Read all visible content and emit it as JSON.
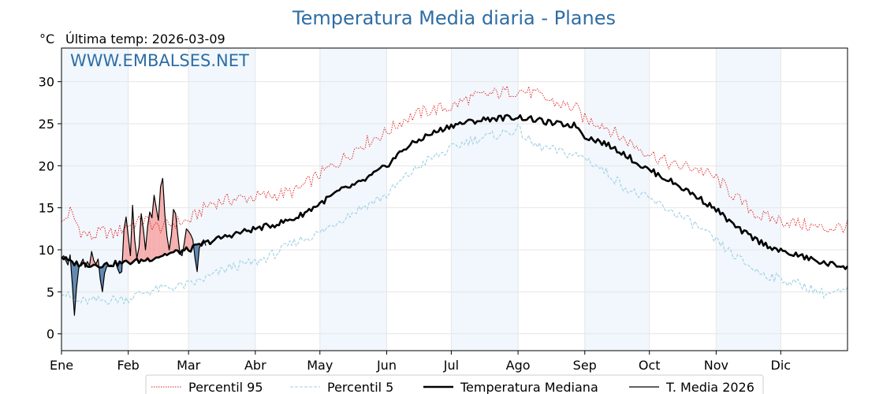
{
  "chart_data": {
    "type": "line",
    "title": "Temperatura Media diaria - Planes",
    "unit_label": "°C",
    "last_temp_label": "Última temp: 2026-03-09",
    "watermark": "WWW.EMBALSES.NET",
    "x_ticks": [
      "Ene",
      "Feb",
      "Mar",
      "Abr",
      "May",
      "Jun",
      "Jul",
      "Ago",
      "Sep",
      "Oct",
      "Nov",
      "Dic"
    ],
    "x_tick_days": [
      1,
      32,
      60,
      91,
      121,
      152,
      182,
      213,
      244,
      274,
      305,
      335
    ],
    "x_range_days": [
      1,
      366
    ],
    "y_ticks": [
      0,
      5,
      10,
      15,
      20,
      25,
      30
    ],
    "ylim": [
      -2,
      34
    ],
    "grid": true,
    "legend_position": "bottom-center",
    "colors": {
      "p95": "#e31a1c",
      "p5": "#9fd0e3",
      "median": "#000000",
      "current": "#000000",
      "above_fill": "#f4a6a6",
      "below_fill": "#4f7aa8",
      "month_shade": "#e8f1fa",
      "title": "#2e6da4"
    },
    "series": [
      {
        "name": "Percentil 95",
        "key": "p95",
        "style": "dotted",
        "anchors": [
          [
            1,
            13
          ],
          [
            5,
            14.6
          ],
          [
            10,
            12.2
          ],
          [
            15,
            11.5
          ],
          [
            20,
            12.2
          ],
          [
            25,
            11.8
          ],
          [
            32,
            13
          ],
          [
            40,
            13.5
          ],
          [
            46,
            12.6
          ],
          [
            55,
            13.3
          ],
          [
            60,
            13.4
          ],
          [
            70,
            15.5
          ],
          [
            80,
            16
          ],
          [
            91,
            16.3
          ],
          [
            100,
            16.5
          ],
          [
            110,
            17
          ],
          [
            121,
            19
          ],
          [
            130,
            20.5
          ],
          [
            140,
            22.5
          ],
          [
            152,
            24
          ],
          [
            160,
            25.5
          ],
          [
            170,
            26.5
          ],
          [
            182,
            27
          ],
          [
            190,
            28
          ],
          [
            200,
            28.5
          ],
          [
            213,
            29
          ],
          [
            220,
            28.6
          ],
          [
            230,
            27.5
          ],
          [
            240,
            26.8
          ],
          [
            244,
            25.5
          ],
          [
            252,
            25
          ],
          [
            260,
            23.5
          ],
          [
            270,
            22
          ],
          [
            274,
            21.5
          ],
          [
            285,
            20
          ],
          [
            295,
            19.8
          ],
          [
            305,
            18.5
          ],
          [
            315,
            16
          ],
          [
            325,
            14
          ],
          [
            335,
            13.5
          ],
          [
            345,
            13
          ],
          [
            355,
            12.5
          ],
          [
            366,
            12.8
          ]
        ],
        "noise": 0.8
      },
      {
        "name": "Percentil 5",
        "key": "p5",
        "style": "dashed",
        "anchors": [
          [
            1,
            5
          ],
          [
            8,
            3.8
          ],
          [
            20,
            4
          ],
          [
            32,
            4.2
          ],
          [
            40,
            5
          ],
          [
            50,
            5.5
          ],
          [
            60,
            5.8
          ],
          [
            70,
            6.8
          ],
          [
            80,
            8
          ],
          [
            91,
            8.5
          ],
          [
            100,
            9.5
          ],
          [
            110,
            11
          ],
          [
            121,
            12
          ],
          [
            130,
            13.5
          ],
          [
            140,
            15
          ],
          [
            152,
            16.5
          ],
          [
            160,
            18.5
          ],
          [
            170,
            20.5
          ],
          [
            182,
            22
          ],
          [
            190,
            23
          ],
          [
            200,
            23.5
          ],
          [
            213,
            24.3
          ],
          [
            220,
            22.5
          ],
          [
            230,
            21.8
          ],
          [
            244,
            21
          ],
          [
            255,
            19
          ],
          [
            265,
            17
          ],
          [
            274,
            16
          ],
          [
            285,
            14.5
          ],
          [
            295,
            13
          ],
          [
            305,
            11
          ],
          [
            315,
            9
          ],
          [
            325,
            7.3
          ],
          [
            335,
            6.5
          ],
          [
            345,
            5.8
          ],
          [
            355,
            4.8
          ],
          [
            366,
            5
          ]
        ],
        "noise": 0.6
      },
      {
        "name": "Temperatura Mediana",
        "key": "median",
        "style": "solid-thick",
        "anchors": [
          [
            1,
            9.2
          ],
          [
            5,
            8.5
          ],
          [
            10,
            8.3
          ],
          [
            20,
            8.2
          ],
          [
            32,
            8.5
          ],
          [
            40,
            8.8
          ],
          [
            50,
            9.5
          ],
          [
            60,
            10
          ],
          [
            70,
            11
          ],
          [
            80,
            11.8
          ],
          [
            91,
            12.5
          ],
          [
            100,
            13
          ],
          [
            110,
            13.8
          ],
          [
            121,
            15.5
          ],
          [
            130,
            17
          ],
          [
            140,
            18
          ],
          [
            152,
            20
          ],
          [
            160,
            22
          ],
          [
            170,
            23.5
          ],
          [
            182,
            24.8
          ],
          [
            190,
            25.2
          ],
          [
            200,
            25.6
          ],
          [
            213,
            25.8
          ],
          [
            220,
            25.5
          ],
          [
            230,
            25
          ],
          [
            240,
            24.8
          ],
          [
            244,
            23.5
          ],
          [
            252,
            22.8
          ],
          [
            262,
            21.5
          ],
          [
            270,
            20
          ],
          [
            274,
            19.5
          ],
          [
            285,
            18
          ],
          [
            295,
            16.5
          ],
          [
            305,
            14.8
          ],
          [
            315,
            12.5
          ],
          [
            325,
            11
          ],
          [
            335,
            9.8
          ],
          [
            345,
            9.2
          ],
          [
            355,
            8.4
          ],
          [
            366,
            8
          ]
        ],
        "noise": 0.35
      },
      {
        "name": "T. Media 2026",
        "key": "current",
        "style": "solid-thin",
        "points": [
          [
            1,
            9
          ],
          [
            2,
            9.3
          ],
          [
            3,
            8.7
          ],
          [
            4,
            8.2
          ],
          [
            5,
            9.4
          ],
          [
            6,
            6
          ],
          [
            7,
            2.2
          ],
          [
            8,
            5.5
          ],
          [
            9,
            7.8
          ],
          [
            10,
            8.4
          ],
          [
            11,
            8.9
          ],
          [
            12,
            7.9
          ],
          [
            13,
            8.6
          ],
          [
            14,
            8.1
          ],
          [
            15,
            9.8
          ],
          [
            16,
            8.7
          ],
          [
            17,
            8.3
          ],
          [
            18,
            8.9
          ],
          [
            19,
            6.5
          ],
          [
            20,
            5
          ],
          [
            21,
            7.2
          ],
          [
            22,
            8
          ],
          [
            23,
            8.1
          ],
          [
            24,
            8.2
          ],
          [
            25,
            8
          ],
          [
            26,
            8.6
          ],
          [
            27,
            7.8
          ],
          [
            28,
            7.2
          ],
          [
            29,
            7.4
          ],
          [
            30,
            12.4
          ],
          [
            31,
            13.9
          ],
          [
            32,
            11.6
          ],
          [
            33,
            9.3
          ],
          [
            34,
            15.3
          ],
          [
            35,
            11.2
          ],
          [
            36,
            9
          ],
          [
            37,
            10.3
          ],
          [
            38,
            14.3
          ],
          [
            39,
            12.5
          ],
          [
            40,
            10
          ],
          [
            41,
            12.8
          ],
          [
            42,
            14.5
          ],
          [
            43,
            13.8
          ],
          [
            44,
            16.5
          ],
          [
            45,
            15
          ],
          [
            46,
            13.5
          ],
          [
            47,
            17.5
          ],
          [
            48,
            18.5
          ],
          [
            49,
            14.2
          ],
          [
            50,
            11.6
          ],
          [
            51,
            10
          ],
          [
            52,
            11.7
          ],
          [
            53,
            14.8
          ],
          [
            54,
            14.3
          ],
          [
            55,
            11.8
          ],
          [
            56,
            9.5
          ],
          [
            57,
            9.3
          ],
          [
            58,
            10.8
          ],
          [
            59,
            12.5
          ],
          [
            60,
            12.2
          ],
          [
            61,
            11.8
          ],
          [
            62,
            11.2
          ],
          [
            63,
            9
          ],
          [
            64,
            7.4
          ],
          [
            65,
            10.2
          ],
          [
            66,
            10.8
          ],
          [
            67,
            11.2
          ],
          [
            68,
            10.5
          ]
        ]
      }
    ]
  }
}
